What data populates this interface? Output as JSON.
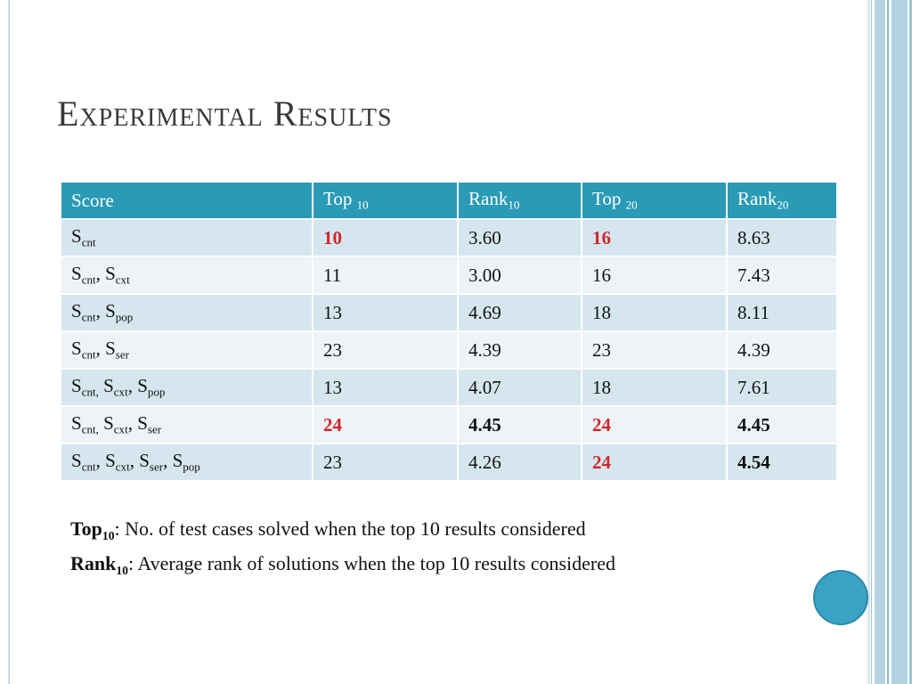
{
  "slide": {
    "title": "Experimental Results"
  },
  "colors": {
    "header_bg": "#2a9ab5",
    "row_dark": "#d6e6ee",
    "row_light": "#edf3f6",
    "highlight": "#d0262a",
    "accent_dot": "#3aa2c4"
  },
  "table": {
    "headers": [
      {
        "base": "Score",
        "sub": ""
      },
      {
        "base": "Top ",
        "sub": "10"
      },
      {
        "base": "Rank",
        "sub": "10"
      },
      {
        "base": "Top ",
        "sub": "20"
      },
      {
        "base": "Rank",
        "sub": "20"
      }
    ],
    "rows": [
      {
        "score": [
          {
            "base": "S",
            "sub": "cnt",
            "sep": ""
          }
        ],
        "cells": [
          {
            "v": "10",
            "style": "red"
          },
          {
            "v": "3.60",
            "style": ""
          },
          {
            "v": "16",
            "style": "red"
          },
          {
            "v": "8.63",
            "style": ""
          }
        ]
      },
      {
        "score": [
          {
            "base": "S",
            "sub": "cnt",
            "sep": ", "
          },
          {
            "base": "S",
            "sub": "cxt",
            "sep": ""
          }
        ],
        "cells": [
          {
            "v": "11",
            "style": ""
          },
          {
            "v": "3.00",
            "style": ""
          },
          {
            "v": "16",
            "style": ""
          },
          {
            "v": "7.43",
            "style": ""
          }
        ]
      },
      {
        "score": [
          {
            "base": "S",
            "sub": "cnt",
            "sep": ", "
          },
          {
            "base": "S",
            "sub": "pop",
            "sep": ""
          }
        ],
        "cells": [
          {
            "v": "13",
            "style": ""
          },
          {
            "v": "4.69",
            "style": ""
          },
          {
            "v": "18",
            "style": ""
          },
          {
            "v": "8.11",
            "style": ""
          }
        ]
      },
      {
        "score": [
          {
            "base": "S",
            "sub": "cnt",
            "sep": ", "
          },
          {
            "base": "S",
            "sub": "ser",
            "sep": ""
          }
        ],
        "cells": [
          {
            "v": "23",
            "style": ""
          },
          {
            "v": "4.39",
            "style": ""
          },
          {
            "v": "23",
            "style": ""
          },
          {
            "v": "4.39",
            "style": ""
          }
        ]
      },
      {
        "score": [
          {
            "base": "S",
            "sub": "cnt,",
            "sep": " "
          },
          {
            "base": "S",
            "sub": "cxt",
            "sep": ", "
          },
          {
            "base": "S",
            "sub": "pop",
            "sep": ""
          }
        ],
        "cells": [
          {
            "v": "13",
            "style": ""
          },
          {
            "v": "4.07",
            "style": ""
          },
          {
            "v": "18",
            "style": ""
          },
          {
            "v": "7.61",
            "style": ""
          }
        ]
      },
      {
        "score": [
          {
            "base": "S",
            "sub": "cnt,",
            "sep": " "
          },
          {
            "base": "S",
            "sub": "cxt",
            "sep": ", "
          },
          {
            "base": "S",
            "sub": "ser",
            "sep": ""
          }
        ],
        "cells": [
          {
            "v": "24",
            "style": "red"
          },
          {
            "v": "4.45",
            "style": "bold"
          },
          {
            "v": "24",
            "style": "red"
          },
          {
            "v": "4.45",
            "style": "bold"
          }
        ]
      },
      {
        "score": [
          {
            "base": "S",
            "sub": "cnt",
            "sep": ", "
          },
          {
            "base": "S",
            "sub": "cxt",
            "sep": ", "
          },
          {
            "base": "S",
            "sub": "ser",
            "sep": ", "
          },
          {
            "base": "S",
            "sub": "pop",
            "sep": ""
          }
        ],
        "cells": [
          {
            "v": "23",
            "style": ""
          },
          {
            "v": "4.26",
            "style": ""
          },
          {
            "v": "24",
            "style": "red"
          },
          {
            "v": "4.54",
            "style": "bold"
          }
        ]
      }
    ]
  },
  "legend": {
    "top_term": "Top",
    "top_sub": "10",
    "top_text": ": No. of test cases solved when the top 10 results considered",
    "rank_term": "Rank",
    "rank_sub": "10",
    "rank_text": ": Average rank of solutions when the top 10 results considered"
  }
}
